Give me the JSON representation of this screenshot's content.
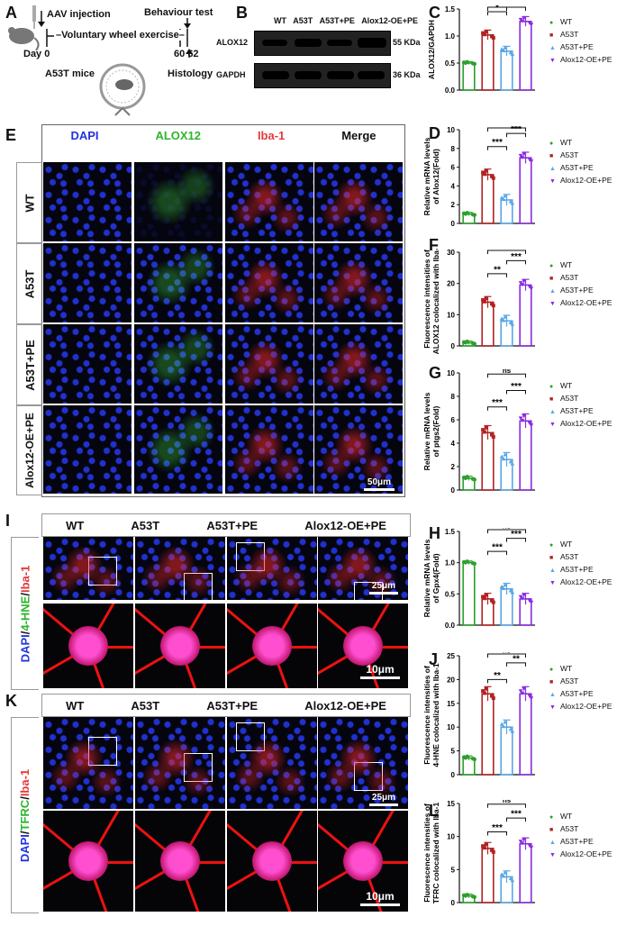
{
  "panel_letters": {
    "A": "A",
    "B": "B",
    "C": "C",
    "D": "D",
    "E": "E",
    "F": "F",
    "G": "G",
    "H": "H",
    "I": "I",
    "J": "J",
    "K": "K",
    "L": "L"
  },
  "panel_a": {
    "aav": "AAV injection",
    "behaviour": "Behaviour test",
    "voluntary": "Voluntary wheel exercise",
    "day": "Day",
    "day0": "0",
    "day60": "60",
    "day62": "62",
    "mice": "A53T mice",
    "histology": "Histology"
  },
  "panel_b": {
    "headers": [
      "WT",
      "A53T",
      "A53T+PE",
      "Alox12-OE+PE"
    ],
    "rows": [
      {
        "name": "ALOX12",
        "kda": "55 KDa"
      },
      {
        "name": "GAPDH",
        "kda": "36 KDa"
      }
    ]
  },
  "groups": [
    "WT",
    "A53T",
    "A53T+PE",
    "Alox12-OE+PE"
  ],
  "colors": {
    "WT": "#2ca02c",
    "A53T": "#b22222",
    "A53T+PE": "#5aa7e6",
    "Alox12-OE+PE": "#8a2be2"
  },
  "panel_e": {
    "columns": [
      "DAPI",
      "ALOX12",
      "Iba-1",
      "Merge"
    ],
    "column_colors": [
      "#2233dd",
      "#2db52d",
      "#e23a3a",
      "#111111"
    ],
    "rows": [
      "WT",
      "A53T",
      "A53T+PE",
      "Alox12-OE+PE"
    ],
    "scale": "50μm"
  },
  "panel_i": {
    "columns": [
      "WT",
      "A53T",
      "A53T+PE",
      "Alox12-OE+PE"
    ],
    "side": [
      "DAPI",
      "/",
      "4-HNE",
      "/",
      "Iba-1"
    ],
    "scale_top": "25μm",
    "scale_bottom": "10μm"
  },
  "panel_k": {
    "columns": [
      "WT",
      "A53T",
      "A53T+PE",
      "Alox12-OE+PE"
    ],
    "side": [
      "DAPI",
      "/",
      "TFRC",
      "/",
      "Iba-1"
    ],
    "scale_top": "25μm",
    "scale_bottom": "10μm"
  },
  "chart_data": [
    {
      "panel": "C",
      "type": "bar",
      "ylabel": [
        "ALOX12/GAPDH"
      ],
      "ylim": [
        0,
        1.5
      ],
      "yticks": [
        0.0,
        0.5,
        1.0,
        1.5
      ],
      "categories": [
        "WT",
        "A53T",
        "A53T+PE",
        "Alox12-OE+PE"
      ],
      "values": [
        0.5,
        1.02,
        0.72,
        1.27
      ],
      "sig": [
        {
          "a": 1,
          "b": 2,
          "label": "*"
        },
        {
          "a": 1,
          "b": 3,
          "label": "*"
        },
        {
          "a": 2,
          "b": 3,
          "label": "***"
        }
      ]
    },
    {
      "panel": "D",
      "type": "bar",
      "ylabel": [
        "Relative mRNA levels",
        "of Alox12(Fold)"
      ],
      "ylim": [
        0,
        10
      ],
      "yticks": [
        0,
        2,
        4,
        6,
        8,
        10
      ],
      "categories": [
        "WT",
        "A53T",
        "A53T+PE",
        "Alox12-OE+PE"
      ],
      "values": [
        1.0,
        5.2,
        2.5,
        7.0
      ],
      "sig": [
        {
          "a": 1,
          "b": 2,
          "label": "***"
        },
        {
          "a": 2,
          "b": 3,
          "label": "***"
        },
        {
          "a": 1,
          "b": 3,
          "label": "***"
        }
      ]
    },
    {
      "panel": "F",
      "type": "bar",
      "ylabel": [
        "Fluorescence intensities of",
        "ALOX12 colocalized with Iba-1"
      ],
      "ylim": [
        0,
        30
      ],
      "yticks": [
        0,
        10,
        20,
        30
      ],
      "categories": [
        "WT",
        "A53T",
        "A53T+PE",
        "Alox12-OE+PE"
      ],
      "values": [
        1.0,
        14.0,
        8.0,
        19.5
      ],
      "sig": [
        {
          "a": 1,
          "b": 2,
          "label": "**"
        },
        {
          "a": 2,
          "b": 3,
          "label": "***"
        },
        {
          "a": 1,
          "b": 3,
          "label": "*"
        }
      ]
    },
    {
      "panel": "G",
      "type": "bar",
      "ylabel": [
        "Relative mRNA levels",
        "of ptgs2(Fold)"
      ],
      "ylim": [
        0,
        10
      ],
      "yticks": [
        0,
        2,
        4,
        6,
        8,
        10
      ],
      "categories": [
        "WT",
        "A53T",
        "A53T+PE",
        "Alox12-OE+PE"
      ],
      "values": [
        1.0,
        4.9,
        2.6,
        5.9
      ],
      "sig": [
        {
          "a": 1,
          "b": 2,
          "label": "***"
        },
        {
          "a": 2,
          "b": 3,
          "label": "***"
        },
        {
          "a": 1,
          "b": 3,
          "label": "ns"
        }
      ]
    },
    {
      "panel": "H",
      "type": "bar",
      "ylabel": [
        "Relative mRNA levels",
        "of Gpx4(Fold)"
      ],
      "ylim": [
        0,
        1.5
      ],
      "yticks": [
        0.0,
        0.5,
        1.0,
        1.5
      ],
      "categories": [
        "WT",
        "A53T",
        "A53T+PE",
        "Alox12-OE+PE"
      ],
      "values": [
        1.0,
        0.42,
        0.58,
        0.42
      ],
      "sig": [
        {
          "a": 1,
          "b": 2,
          "label": "***"
        },
        {
          "a": 2,
          "b": 3,
          "label": "***"
        },
        {
          "a": 1,
          "b": 3,
          "label": "ns"
        }
      ]
    },
    {
      "panel": "J",
      "type": "bar",
      "ylabel": [
        "Fluorescence intensities of",
        "4-HNE colocalized with Iba-1"
      ],
      "ylim": [
        0,
        25
      ],
      "yticks": [
        0,
        5,
        10,
        15,
        20,
        25
      ],
      "categories": [
        "WT",
        "A53T",
        "A53T+PE",
        "Alox12-OE+PE"
      ],
      "values": [
        3.5,
        17.0,
        10.0,
        17.0
      ],
      "sig": [
        {
          "a": 1,
          "b": 2,
          "label": "**"
        },
        {
          "a": 2,
          "b": 3,
          "label": "**"
        },
        {
          "a": 1,
          "b": 3,
          "label": "ns"
        }
      ]
    },
    {
      "panel": "L",
      "type": "bar",
      "ylabel": [
        "Fluorescence intensities of",
        "TFRC colocalized with Iba-1"
      ],
      "ylim": [
        0,
        15
      ],
      "yticks": [
        0,
        5,
        10,
        15
      ],
      "categories": [
        "WT",
        "A53T",
        "A53T+PE",
        "Alox12-OE+PE"
      ],
      "values": [
        1.0,
        8.2,
        3.9,
        8.9
      ],
      "sig": [
        {
          "a": 1,
          "b": 2,
          "label": "***"
        },
        {
          "a": 2,
          "b": 3,
          "label": "***"
        },
        {
          "a": 1,
          "b": 3,
          "label": "ns"
        }
      ]
    }
  ]
}
